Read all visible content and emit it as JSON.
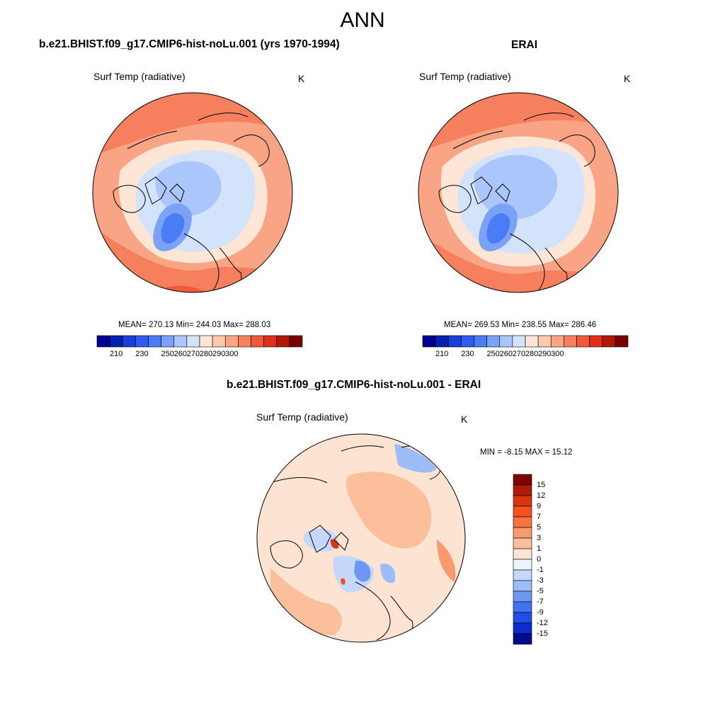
{
  "title": "ANN",
  "panels": {
    "model": {
      "title": "b.e21.BHIST.f09_g17.CMIP6-hist-noLu.001 (yrs 1970-1994)",
      "variable": "Surf Temp (radiative)",
      "units": "K",
      "stats": "MEAN= 270.13  Min= 244.03  Max= 288.03"
    },
    "obs": {
      "title": "ERAI",
      "variable": "Surf Temp (radiative)",
      "units": "K",
      "stats": "MEAN= 269.53  Min= 238.55  Max= 286.46"
    },
    "diff": {
      "title": "b.e21.BHIST.f09_g17.CMIP6-hist-noLu.001 - ERAI",
      "variable": "Surf Temp (radiative)",
      "units": "K",
      "stats": "MIN =  -8.15 MAX =  15.12"
    }
  },
  "colorbars": {
    "absolute": {
      "labels": [
        "210",
        "230",
        "250",
        "260",
        "270",
        "280",
        "290",
        "300"
      ],
      "colors": [
        "#000090",
        "#0520b0",
        "#1a3fd6",
        "#2f5bf0",
        "#4a7cf5",
        "#7ba2f7",
        "#aac6fa",
        "#d4e3fc",
        "#fde6d6",
        "#fbc9ae",
        "#f9a585",
        "#f6805e",
        "#f05a3a",
        "#e03018",
        "#b01806",
        "#7a0000"
      ]
    },
    "difference": {
      "labels": [
        "15",
        "12",
        "9",
        "7",
        "5",
        "3",
        "1",
        "0",
        "-1",
        "-3",
        "-5",
        "-7",
        "-9",
        "-12",
        "-15"
      ],
      "colors": [
        "#800000",
        "#b01a05",
        "#d83510",
        "#f5521f",
        "#f8733f",
        "#f99a6e",
        "#fbbf9c",
        "#fde3d2",
        "#eef3fd",
        "#c5d8fb",
        "#9cbdf8",
        "#6e97f3",
        "#4371ef",
        "#1f4ee8",
        "#0a2dcc",
        "#000c8c"
      ]
    },
    "map_colors": {
      "warm_deep": "#f05a3a",
      "warm_mid": "#f6805e",
      "warm_light": "#f9a585",
      "warm_pale": "#fbc9ae",
      "neutral_warm": "#fde6d6",
      "cool_pale": "#d4e3fc",
      "cool_light": "#aac6fa",
      "cool_mid": "#7ba2f7",
      "cool_deep": "#4a7cf5"
    }
  }
}
